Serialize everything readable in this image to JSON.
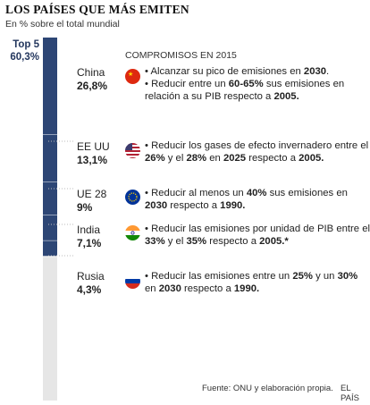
{
  "title": "LOS PAÍSES QUE MÁS EMITEN",
  "subtitle": "En % sobre el total mundial",
  "compromisos_heading": "COMPROMISOS EN 2015",
  "source": "Fuente: ONU y elaboración propia.",
  "brand": "EL PAÍS",
  "colors": {
    "bar_dark": "#2d4675",
    "bar_light": "#e6e6e6",
    "divider": "#ffffff",
    "top5_label": "#24375e"
  },
  "chart_data": {
    "type": "bar",
    "title": "LOS PAÍSES QUE MÁS EMITEN",
    "subtitle": "En % sobre el total mundial",
    "unit": "%",
    "total": 100,
    "top_group": {
      "label": "Top 5",
      "value": 60.3,
      "value_label": "60,3%"
    },
    "categories": [
      "China",
      "EE UU",
      "UE 28",
      "India",
      "Rusia"
    ],
    "values": [
      26.8,
      13.1,
      9,
      7.1,
      4.3
    ],
    "value_labels": [
      "26,8%",
      "13,1%",
      "9%",
      "7,1%",
      "4,3%"
    ],
    "rest_value": 39.7
  },
  "countries": [
    {
      "name": "China",
      "value_label": "26,8%",
      "flag_icon": "china-flag-icon",
      "commitments": [
        [
          {
            "t": "• Alcanzar su pico de emisiones en "
          },
          {
            "t": "2030",
            "b": true
          },
          {
            "t": "."
          }
        ],
        [
          {
            "t": "• Reducir entre un "
          },
          {
            "t": "60-65%",
            "b": true
          },
          {
            "t": " sus emisiones en relación a su PIB respecto a "
          },
          {
            "t": "2005.",
            "b": true
          }
        ]
      ]
    },
    {
      "name": "EE UU",
      "value_label": "13,1%",
      "flag_icon": "usa-flag-icon",
      "commitments": [
        [
          {
            "t": "• Reducir los gases de efecto invernadero entre el "
          },
          {
            "t": "26%",
            "b": true
          },
          {
            "t": " y el "
          },
          {
            "t": "28%",
            "b": true
          },
          {
            "t": " en "
          },
          {
            "t": "2025",
            "b": true
          },
          {
            "t": " respecto a "
          },
          {
            "t": "2005.",
            "b": true
          }
        ]
      ]
    },
    {
      "name": "UE 28",
      "value_label": "9%",
      "flag_icon": "eu-flag-icon",
      "commitments": [
        [
          {
            "t": "• Reducir al menos un "
          },
          {
            "t": "40%",
            "b": true
          },
          {
            "t": " sus emisiones en "
          },
          {
            "t": "2030",
            "b": true
          },
          {
            "t": " respecto a "
          },
          {
            "t": "1990.",
            "b": true
          }
        ]
      ]
    },
    {
      "name": "India",
      "value_label": "7,1%",
      "flag_icon": "india-flag-icon",
      "commitments": [
        [
          {
            "t": "• Reducir las emisiones por unidad de PIB entre el "
          },
          {
            "t": "33%",
            "b": true
          },
          {
            "t": " y el "
          },
          {
            "t": "35%",
            "b": true
          },
          {
            "t": " respecto a "
          },
          {
            "t": "2005.*",
            "b": true
          }
        ]
      ]
    },
    {
      "name": "Rusia",
      "value_label": "4,3%",
      "flag_icon": "russia-flag-icon",
      "commitments": [
        [
          {
            "t": "• Reducir las emisiones entre un "
          },
          {
            "t": "25%",
            "b": true
          },
          {
            "t": " y un "
          },
          {
            "t": "30%",
            "b": true
          },
          {
            "t": " en "
          },
          {
            "t": "2030",
            "b": true
          },
          {
            "t": " respecto a "
          },
          {
            "t": "1990.",
            "b": true
          }
        ]
      ]
    }
  ]
}
